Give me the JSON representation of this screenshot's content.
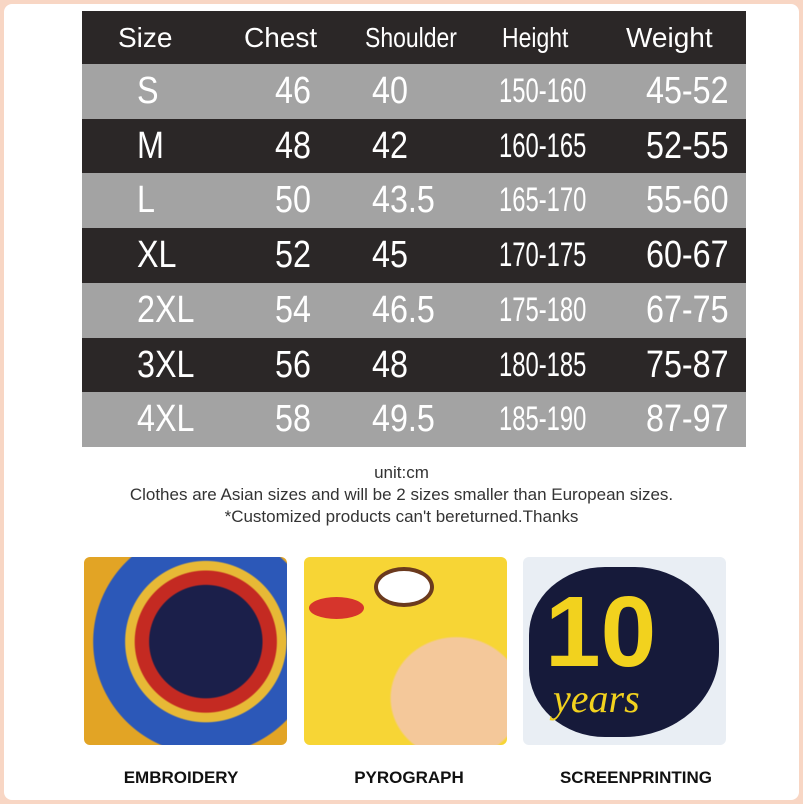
{
  "table": {
    "headers": [
      "Size",
      "Chest",
      "Shoulder",
      "Height",
      "Weight"
    ],
    "rows": [
      [
        "S",
        "46",
        "40",
        "150-160",
        "45-52"
      ],
      [
        "M",
        "48",
        "42",
        "160-165",
        "52-55"
      ],
      [
        "L",
        "50",
        "43.5",
        "165-170",
        "55-60"
      ],
      [
        "XL",
        "52",
        "45",
        "170-175",
        "60-67"
      ],
      [
        "2XL",
        "54",
        "46.5",
        "175-180",
        "67-75"
      ],
      [
        "3XL",
        "56",
        "48",
        "180-185",
        "75-87"
      ],
      [
        "4XL",
        "58",
        "49.5",
        "185-190",
        "87-97"
      ]
    ],
    "colors": {
      "dark": "#2b2727",
      "light": "#a3a3a3"
    }
  },
  "notes": {
    "unit": "unit:cm",
    "line1": "Clothes are Asian sizes and will be 2 sizes smaller than European sizes.",
    "line2": "*Customized products can't bereturned.Thanks"
  },
  "crafts": [
    {
      "label": "EMBROIDERY"
    },
    {
      "label": "PYROGRAPH"
    },
    {
      "label": "SCREENPRINTING",
      "artwork_text": "10 years"
    }
  ]
}
